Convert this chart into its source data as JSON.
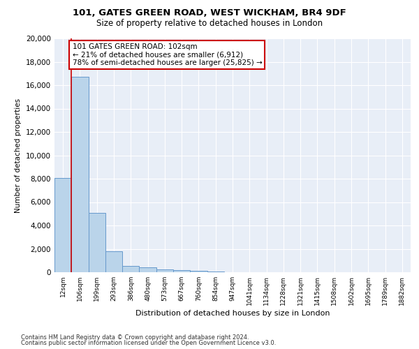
{
  "title_line1": "101, GATES GREEN ROAD, WEST WICKHAM, BR4 9DF",
  "title_line2": "Size of property relative to detached houses in London",
  "xlabel": "Distribution of detached houses by size in London",
  "ylabel": "Number of detached properties",
  "footnote1": "Contains HM Land Registry data © Crown copyright and database right 2024.",
  "footnote2": "Contains public sector information licensed under the Open Government Licence v3.0.",
  "annotation_title": "101 GATES GREEN ROAD: 102sqm",
  "annotation_line1": "← 21% of detached houses are smaller (6,912)",
  "annotation_line2": "78% of semi-detached houses are larger (25,825) →",
  "bar_color": "#bad4ea",
  "bar_edge_color": "#6699cc",
  "marker_color": "#cc0000",
  "categories": [
    "12sqm",
    "106sqm",
    "199sqm",
    "293sqm",
    "386sqm",
    "480sqm",
    "573sqm",
    "667sqm",
    "760sqm",
    "854sqm",
    "947sqm",
    "1041sqm",
    "1134sqm",
    "1228sqm",
    "1321sqm",
    "1415sqm",
    "1508sqm",
    "1602sqm",
    "1695sqm",
    "1789sqm",
    "1882sqm"
  ],
  "values": [
    8050,
    16700,
    5100,
    1800,
    530,
    390,
    230,
    170,
    130,
    80,
    0,
    0,
    0,
    0,
    0,
    0,
    0,
    0,
    0,
    0,
    0
  ],
  "ylim": [
    0,
    20000
  ],
  "yticks": [
    0,
    2000,
    4000,
    6000,
    8000,
    10000,
    12000,
    14000,
    16000,
    18000,
    20000
  ],
  "annotation_box_color": "#cc0000",
  "bg_color": "#e8eef7",
  "grid_color": "#ffffff"
}
